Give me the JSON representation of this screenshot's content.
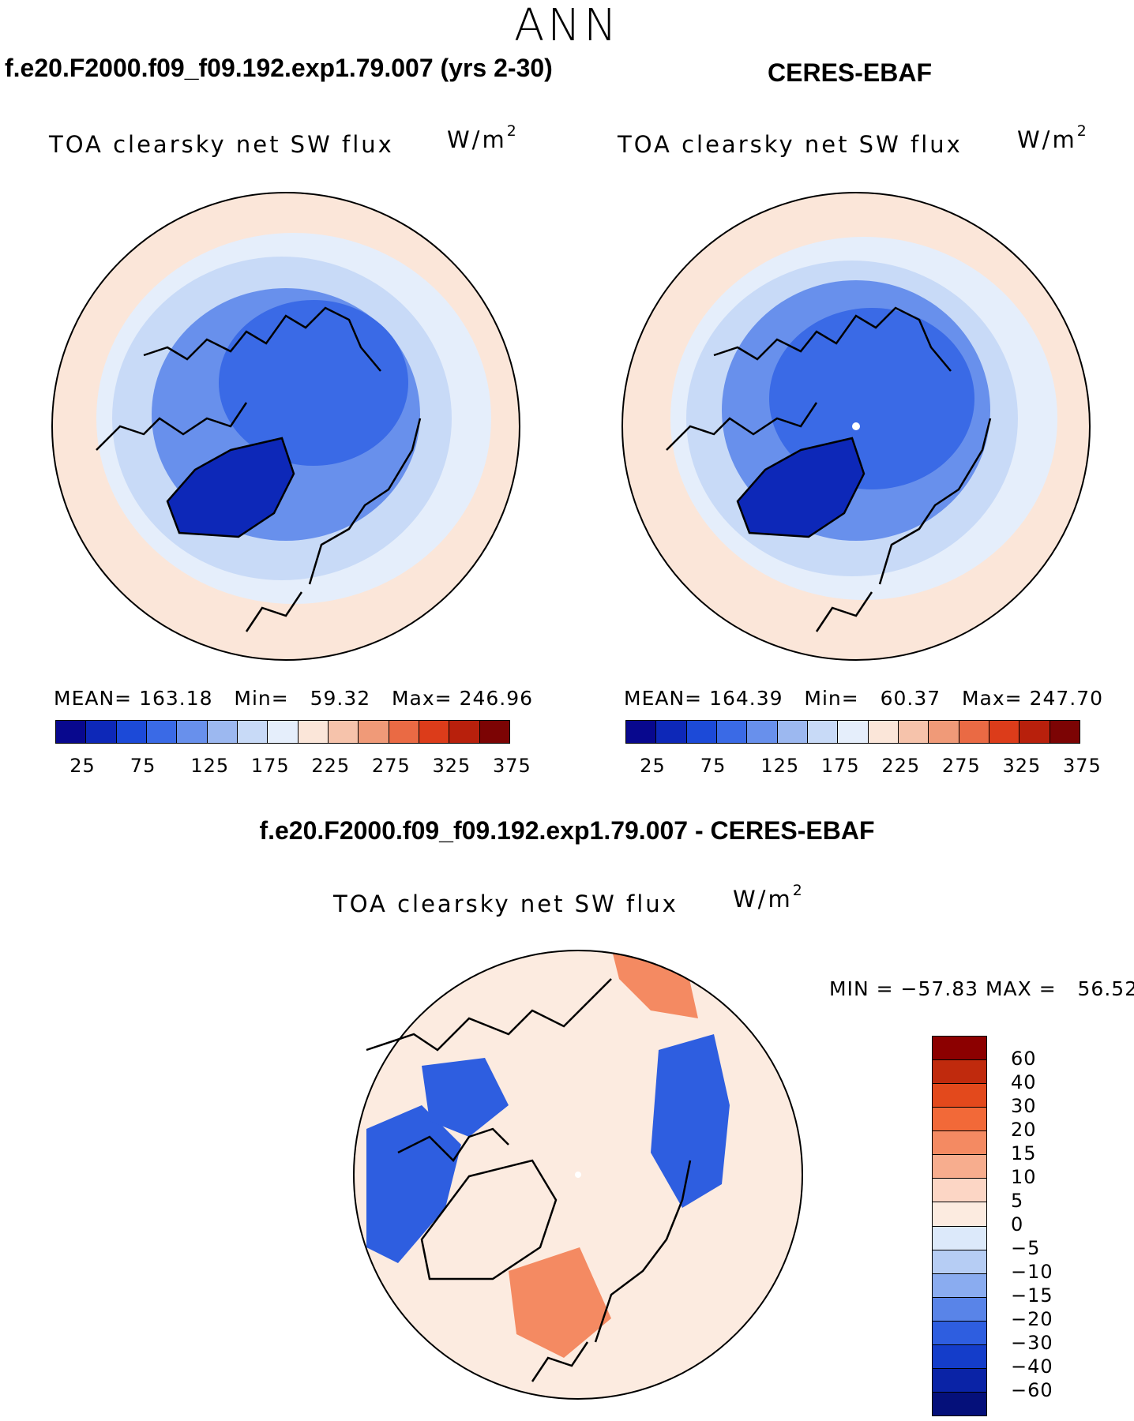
{
  "season": "ANN",
  "panels": {
    "model": {
      "title": "f.e20.F2000.f09_f09.192.exp1.79.007 (yrs 2-30)",
      "variable": "TOA clearsky net SW flux",
      "units_base": "W/m",
      "units_exp": "2",
      "stats": {
        "mean_label": "MEAN=",
        "mean": "163.18",
        "min_label": "Min=",
        "min": "59.32",
        "max_label": "Max=",
        "max": "246.96"
      }
    },
    "obs": {
      "title": "CERES-EBAF",
      "variable": "TOA clearsky net SW flux",
      "units_base": "W/m",
      "units_exp": "2",
      "stats": {
        "mean_label": "MEAN=",
        "mean": "164.39",
        "min_label": "Min=",
        "min": "60.37",
        "max_label": "Max=",
        "max": "247.70"
      }
    },
    "diff": {
      "title": "f.e20.F2000.f09_f09.192.exp1.79.007 - CERES-EBAF",
      "variable": "TOA clearsky net SW flux",
      "units_base": "W/m",
      "units_exp": "2",
      "minmax": {
        "min_label": "MIN =",
        "min": "−57.83",
        "max_label": "MAX =",
        "max": "56.52"
      }
    }
  },
  "colorbar_main": {
    "colors": [
      "#08088e",
      "#0d28b8",
      "#1c4ad8",
      "#3a6ae6",
      "#6890ec",
      "#9cb8f0",
      "#c8daf7",
      "#e5eefb",
      "#fbe6d9",
      "#f6c3ab",
      "#f09a78",
      "#ea6a44",
      "#dc3c1a",
      "#b8200c",
      "#7c0404"
    ],
    "tick_labels": [
      "25",
      "75",
      "125",
      "175",
      "225",
      "275",
      "325",
      "375"
    ]
  },
  "colorbar_diff": {
    "colors_top_to_bottom": [
      "#8c0000",
      "#c02a0d",
      "#e3491c",
      "#f26938",
      "#f48a62",
      "#f7ad8e",
      "#fcd6c5",
      "#fcebe0",
      "#dce9fa",
      "#b6cdf4",
      "#8aacf0",
      "#5984e8",
      "#2e5ee0",
      "#143dca",
      "#0a23a6",
      "#05107a"
    ],
    "tick_labels": [
      "60",
      "40",
      "30",
      "20",
      "15",
      "10",
      "5",
      "0",
      "−5",
      "−10",
      "−15",
      "−20",
      "−30",
      "−40",
      "−60"
    ]
  },
  "map_colors": {
    "ring_outer": "#fbe6d9",
    "ring_mid": "#e5eefb",
    "ring_inner": "#c8daf7",
    "ring_core": "#6890ec",
    "pole": "#3a6ae6",
    "greenland": "#0d28b8",
    "diff_base": "#fcebe0",
    "diff_cool": "#2e5ee0",
    "diff_warm": "#f48a62"
  }
}
